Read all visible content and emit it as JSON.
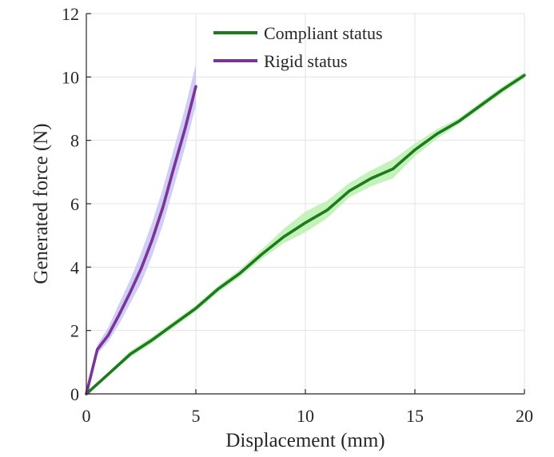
{
  "chart_data": {
    "type": "line",
    "xlabel": "Displacement (mm)",
    "ylabel": "Generated force (N)",
    "xlim": [
      0,
      20
    ],
    "ylim": [
      0,
      12
    ],
    "x_ticks": [
      0,
      5,
      10,
      15,
      20
    ],
    "y_ticks": [
      0,
      2,
      4,
      6,
      8,
      10,
      12
    ],
    "grid": true,
    "legend": "top-center",
    "axis_color": "#262626",
    "grid_color": "#e3e3e3",
    "series": [
      {
        "name": "Compliant status",
        "color": "#1f7a1f",
        "band_color": "#bdf2b4",
        "x": [
          0,
          1,
          2,
          3,
          4,
          5,
          6,
          7,
          8,
          9,
          10,
          11,
          12,
          13,
          14,
          15,
          16,
          17,
          18,
          19,
          20
        ],
        "y": [
          0,
          0.62,
          1.25,
          1.7,
          2.2,
          2.7,
          3.3,
          3.8,
          4.4,
          4.95,
          5.4,
          5.8,
          6.4,
          6.8,
          7.1,
          7.7,
          8.2,
          8.6,
          9.1,
          9.6,
          10.05
        ],
        "y_upper": [
          0,
          0.67,
          1.35,
          1.8,
          2.3,
          2.8,
          3.4,
          3.92,
          4.55,
          5.2,
          5.75,
          6.1,
          6.65,
          7.05,
          7.4,
          7.9,
          8.35,
          8.7,
          9.2,
          9.7,
          10.15
        ],
        "y_lower": [
          0,
          0.57,
          1.15,
          1.6,
          2.1,
          2.6,
          3.2,
          3.68,
          4.25,
          4.75,
          5.1,
          5.55,
          6.2,
          6.55,
          6.8,
          7.5,
          8.05,
          8.5,
          9.0,
          9.5,
          9.95
        ]
      },
      {
        "name": "Rigid status",
        "color": "#7b3596",
        "band_color": "#cbc8f5",
        "x": [
          0,
          0.5,
          1,
          1.5,
          2,
          2.5,
          3,
          3.5,
          4,
          4.5,
          5
        ],
        "y": [
          0,
          1.4,
          1.85,
          2.5,
          3.2,
          3.95,
          4.85,
          5.9,
          7.15,
          8.35,
          9.7
        ],
        "y_upper": [
          0,
          1.55,
          2.1,
          2.85,
          3.6,
          4.45,
          5.4,
          6.5,
          7.75,
          9.0,
          10.4
        ],
        "y_lower": [
          0,
          1.25,
          1.65,
          2.2,
          2.85,
          3.5,
          4.35,
          5.35,
          6.55,
          7.75,
          9.1
        ]
      }
    ]
  }
}
